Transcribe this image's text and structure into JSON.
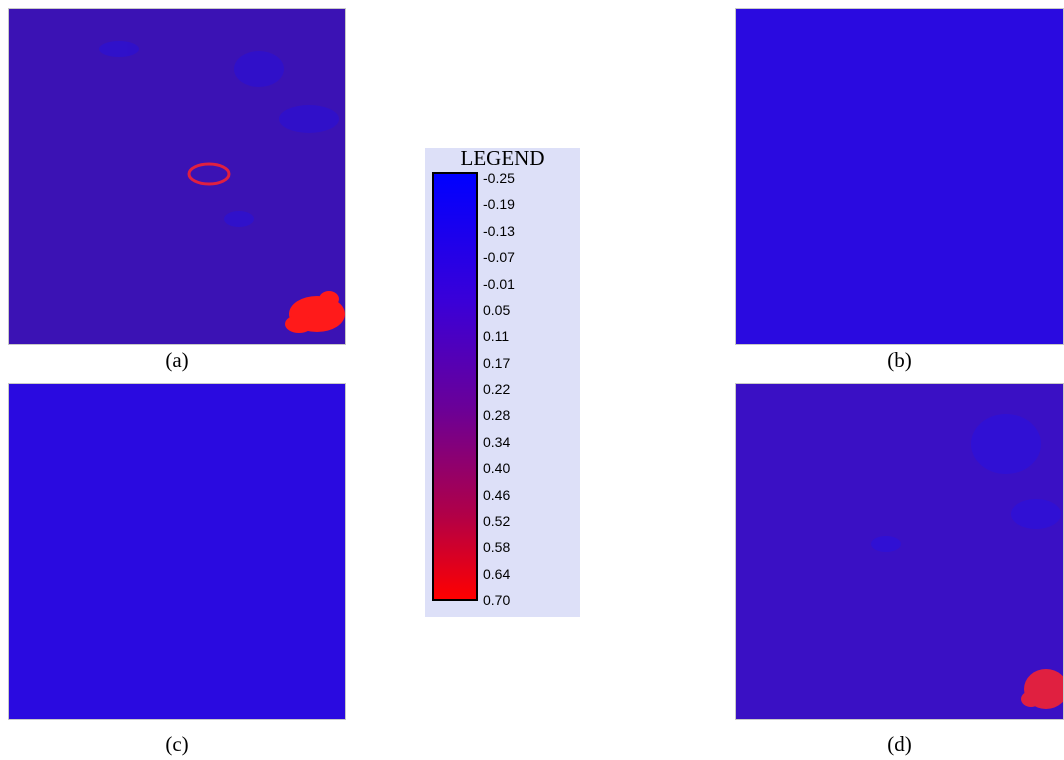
{
  "panels": [
    {
      "label": "(a)"
    },
    {
      "label": "(b)"
    },
    {
      "label": "(c)"
    },
    {
      "label": "(d)"
    }
  ],
  "legend": {
    "title": "LEGEND",
    "labels": [
      "-0.25",
      "-0.19",
      "-0.13",
      "-0.07",
      "-0.01",
      "0.05",
      "0.11",
      "0.17",
      "0.22",
      "0.28",
      "0.34",
      "0.40",
      "0.46",
      "0.52",
      "0.58",
      "0.64",
      "0.70"
    ]
  }
}
